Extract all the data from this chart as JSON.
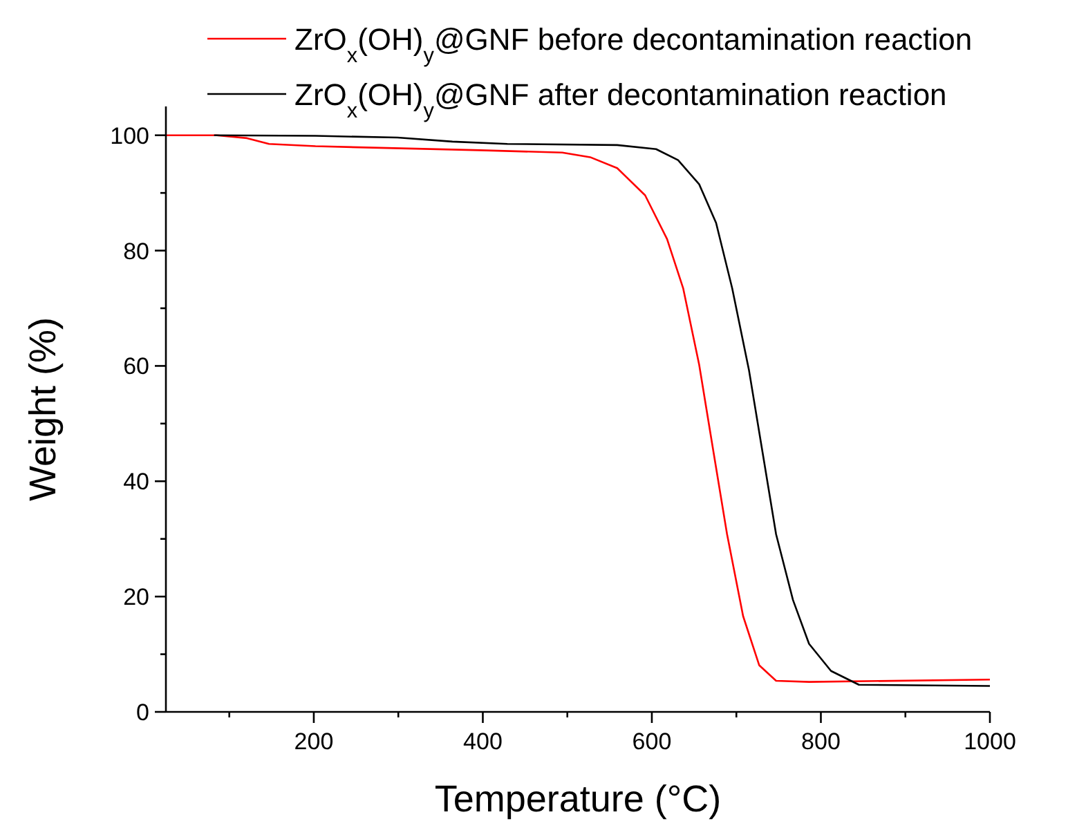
{
  "chart_data": {
    "type": "line",
    "xlabel": "Temperature (°C)",
    "ylabel": "Weight (%)",
    "xlim": [
      25,
      1000
    ],
    "ylim": [
      0,
      105
    ],
    "xticks": [
      {
        "value": 100,
        "label": null
      },
      200,
      {
        "value": 300,
        "label": null
      },
      400,
      {
        "value": 500,
        "label": null
      },
      600,
      {
        "value": 700,
        "label": null
      },
      800,
      {
        "value": 900,
        "label": null
      },
      1000
    ],
    "yticks": [
      0,
      {
        "value": 10,
        "label": null
      },
      20,
      {
        "value": 30,
        "label": null
      },
      40,
      {
        "value": 50,
        "label": null
      },
      60,
      {
        "value": 70,
        "label": null
      },
      80,
      {
        "value": 90,
        "label": null
      },
      100
    ],
    "grid": false,
    "legend": "top right",
    "marker": "none",
    "line_style": "solid",
    "series": [
      {
        "name": "ZrO$_{x}$(OH)$_{y}$@GNF before decontamination reaction",
        "color": "#ff0000",
        "x": [
          25,
          85,
          121,
          147,
          202,
          397,
          494,
          527,
          559,
          592,
          618,
          637,
          656,
          673,
          689,
          708,
          727,
          747,
          786,
          1000
        ],
        "values": [
          100,
          100,
          99.5,
          98.5,
          98.1,
          97.4,
          97.0,
          96.2,
          94.3,
          89.6,
          82,
          73.5,
          60.2,
          45,
          30.8,
          16.6,
          8.1,
          5.4,
          5.2,
          5.6
        ]
      },
      {
        "name": "ZrO$_{x}$(OH)$_{y}$@GNF after decontamination reaction",
        "color": "#000000",
        "x": [
          82,
          202,
          299,
          364,
          429,
          559,
          605,
          631,
          656,
          676,
          695,
          715,
          731,
          747,
          767,
          786,
          812,
          845,
          1000
        ],
        "values": [
          100,
          99.9,
          99.6,
          98.9,
          98.5,
          98.3,
          97.6,
          95.7,
          91.5,
          84.8,
          73.5,
          59.2,
          45,
          30.8,
          19.4,
          11.8,
          7.1,
          4.7,
          4.5
        ]
      }
    ]
  }
}
